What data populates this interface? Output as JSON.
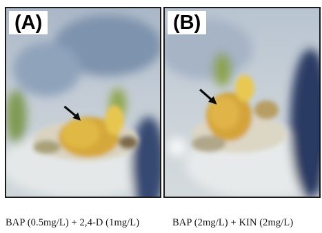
{
  "panels": [
    {
      "label": "(A)",
      "caption": "BAP (0.5mg/L) + 2,4-D (1mg/L)"
    },
    {
      "label": "(B)",
      "caption": "BAP (2mg/L) + KIN (2mg/L)"
    }
  ],
  "colors": {
    "border": "#1a1a1a",
    "callus_yellow": "#d9b23c",
    "background_blue": "#9fb2c6",
    "medium_white": "#e8ecec",
    "dark_blue_cloth": "#27375e"
  },
  "icons": [
    "arrow-icon"
  ]
}
